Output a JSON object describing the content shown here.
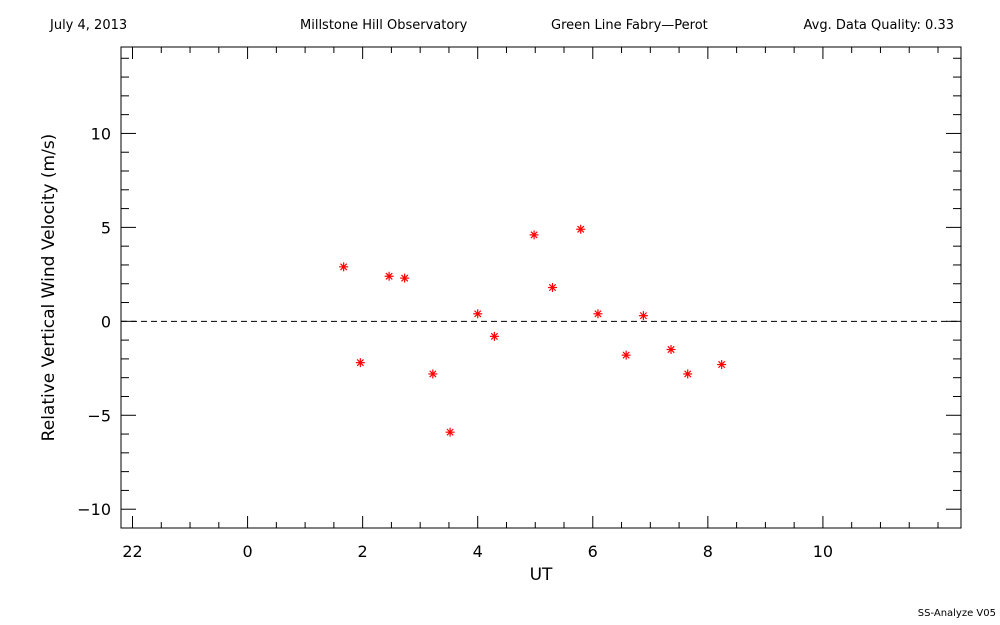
{
  "header": {
    "date": "July 4, 2013",
    "observatory": "Millstone Hill Observatory",
    "instrument": "Green Line Fabry—Perot",
    "quality": "Avg. Data Quality: 0.33"
  },
  "footer": "SS-Analyze V05",
  "chart_data": {
    "type": "scatter",
    "xlabel": "UT",
    "ylabel": "Relative Vertical Wind Velocity (m/s)",
    "xlim": [
      -2.2,
      12.4
    ],
    "ylim": [
      -11.0,
      14.6
    ],
    "x_major_ticks": [
      -2,
      0,
      2,
      4,
      6,
      8,
      10
    ],
    "x_tick_labels": [
      "22",
      "0",
      "2",
      "4",
      "6",
      "8",
      "10"
    ],
    "y_major_ticks": [
      -10,
      -5,
      0,
      5,
      10
    ],
    "y_tick_labels": [
      "−10",
      "−5",
      "0",
      "5",
      "10"
    ],
    "reference_line": {
      "y": 0,
      "style": "dashed"
    },
    "grid": false,
    "marker": "asterisk",
    "marker_color": "#ff0000",
    "series": [
      {
        "x": [
          1.67,
          1.96,
          2.46,
          2.73,
          3.22,
          3.52,
          4.0,
          4.29,
          4.98,
          5.3,
          5.79,
          6.09,
          6.58,
          6.88,
          7.36,
          7.65,
          8.24
        ],
        "y": [
          2.9,
          -2.2,
          2.4,
          2.3,
          -2.8,
          -5.9,
          0.4,
          -0.8,
          4.6,
          1.8,
          4.9,
          0.4,
          -1.8,
          0.3,
          -1.5,
          -2.8,
          -2.3
        ]
      }
    ]
  }
}
